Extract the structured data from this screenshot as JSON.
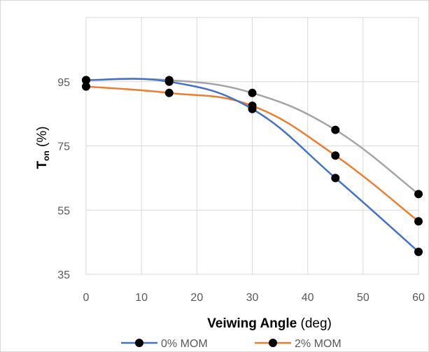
{
  "chart_data": {
    "type": "line",
    "title": "",
    "xlabel": {
      "bold": "Veiwing Angle",
      "unit": " (deg)"
    },
    "ylabel": {
      "main": "T",
      "sub": "on",
      "unit": " (%)"
    },
    "x": [
      0,
      15,
      30,
      45,
      60
    ],
    "xlim": [
      0,
      60
    ],
    "ylim": [
      35,
      115
    ],
    "xticks": [
      "0",
      "10",
      "20",
      "30",
      "40",
      "50",
      "60"
    ],
    "yticks": [
      "35",
      "55",
      "75",
      "95"
    ],
    "grid": true,
    "legend_position": "bottom",
    "series": [
      {
        "name": "0% MOM",
        "color": "#4472c4",
        "values": [
          95.5,
          95.0,
          86.5,
          65.0,
          42.0
        ]
      },
      {
        "name": "2% MOM",
        "color": "#ed7d31",
        "values": [
          93.5,
          91.5,
          87.5,
          72.0,
          51.5
        ]
      },
      {
        "name": "",
        "color": "#a5a5a5",
        "values": [
          95.5,
          95.5,
          91.5,
          80.0,
          60.0
        ]
      }
    ]
  }
}
